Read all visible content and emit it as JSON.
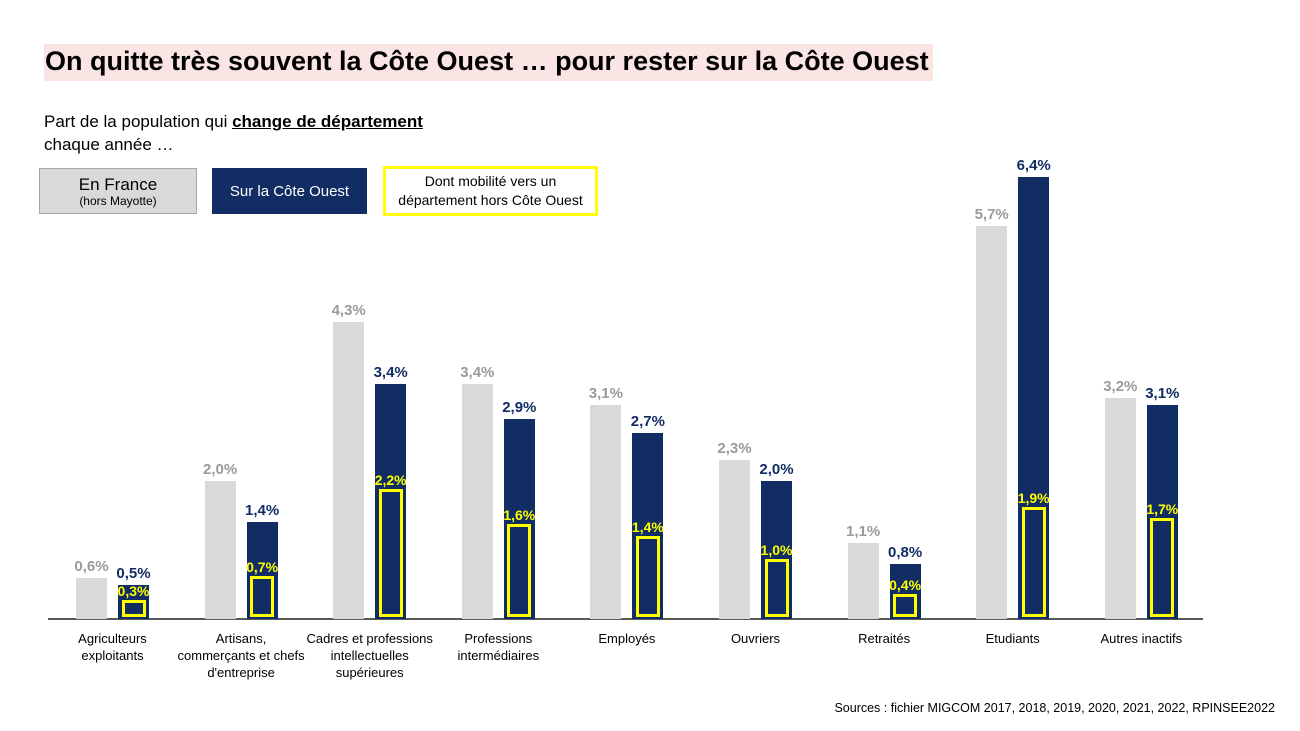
{
  "title": {
    "text": "On quitte très souvent la Côte Ouest … pour rester sur la Côte Ouest"
  },
  "subtitle": {
    "prefix": "Part de la population qui ",
    "emphasis": "change de département",
    "line2": "chaque année …"
  },
  "legend": {
    "france": {
      "label": "En France",
      "sublabel": "(hors Mayotte)"
    },
    "cote_ouest": {
      "label": "Sur la Côte Ouest"
    },
    "hors_cote_ouest": {
      "line1": "Dont mobilité vers un",
      "line2": "département hors Côte Ouest"
    }
  },
  "source": "Sources : fichier MIGCOM 2017, 2018, 2019, 2020, 2021, 2022, RPINSEE2022",
  "colors": {
    "title_highlight": "#FBE4E4",
    "france_gray": "#D9D9D9",
    "cote_ouest_navy": "#112D63",
    "highlight_yellow": "#FFFF00",
    "gray_label": "#9A9A9A",
    "axis_gray": "#595959",
    "legend_border_gray": "#A6A6A6"
  },
  "chart_data": {
    "type": "bar",
    "title": "Part de la population qui change de département chaque année",
    "categories": [
      "Agriculteurs exploitants",
      "Artisans, commerçants et chefs d'entreprise",
      "Cadres et professions intellectuelles supérieures",
      "Professions intermédiaires",
      "Employés",
      "Ouvriers",
      "Retraités",
      "Etudiants",
      "Autres inactifs"
    ],
    "category_lines": [
      [
        "Agriculteurs",
        "exploitants"
      ],
      [
        "Artisans,",
        "commerçants et chefs",
        "d'entreprise"
      ],
      [
        "Cadres et professions",
        "intellectuelles",
        "supérieures"
      ],
      [
        "Professions",
        "intermédiaires"
      ],
      [
        "Employés"
      ],
      [
        "Ouvriers"
      ],
      [
        "Retraités"
      ],
      [
        "Etudiants"
      ],
      [
        "Autres inactifs"
      ]
    ],
    "series": [
      {
        "name": "En France (hors Mayotte)",
        "color": "#D9D9D9",
        "values": [
          0.6,
          2.0,
          4.3,
          3.4,
          3.1,
          2.3,
          1.1,
          5.7,
          3.2
        ]
      },
      {
        "name": "Sur la Côte Ouest",
        "color": "#112D63",
        "values": [
          0.5,
          1.4,
          3.4,
          2.9,
          2.7,
          2.0,
          0.8,
          6.4,
          3.1
        ]
      },
      {
        "name": "Dont mobilité vers un département hors Côte Ouest",
        "color": "#FFFF00",
        "values": [
          0.3,
          0.7,
          2.2,
          1.6,
          1.4,
          1.0,
          0.4,
          1.9,
          1.7
        ]
      }
    ],
    "unit": "%",
    "value_label_format": "comma-decimal",
    "ylim": [
      0,
      7
    ],
    "grid": false,
    "legend_position": "top-left"
  }
}
